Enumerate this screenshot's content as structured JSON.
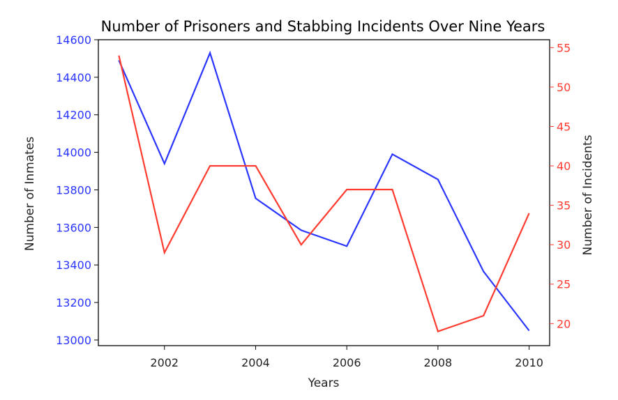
{
  "chart_data": {
    "type": "line",
    "title": "Number of Prisoners and Stabbing Incidents Over Nine Years",
    "xlabel": "Years",
    "x": [
      2001,
      2002,
      2003,
      2004,
      2005,
      2006,
      2007,
      2008,
      2009,
      2010
    ],
    "xlim": [
      2000.55,
      2010.45
    ],
    "x_ticks": [
      "2002",
      "2004",
      "2006",
      "2008",
      "2010"
    ],
    "grid": false,
    "legend": "none",
    "y_left": {
      "label": "Number of Inmates",
      "color": "#2a35ff",
      "ylim": [
        12970,
        14600
      ],
      "ticks": [
        "13000",
        "13200",
        "13400",
        "13600",
        "13800",
        "14000",
        "14200",
        "14400",
        "14600"
      ]
    },
    "y_right": {
      "label": "Number of Incidents",
      "color": "#ff3b30",
      "ylim": [
        17.2,
        56
      ],
      "ticks": [
        "20",
        "25",
        "30",
        "35",
        "40",
        "45",
        "50",
        "55"
      ]
    },
    "series": [
      {
        "axis": "left",
        "color": "#2a35ff",
        "values": [
          14490,
          13940,
          14530,
          13755,
          13585,
          13500,
          13990,
          13855,
          13365,
          13050
        ]
      },
      {
        "axis": "right",
        "color": "#ff3b30",
        "values": [
          54,
          29,
          40,
          40,
          30,
          37,
          37,
          19,
          21,
          34
        ]
      }
    ]
  }
}
